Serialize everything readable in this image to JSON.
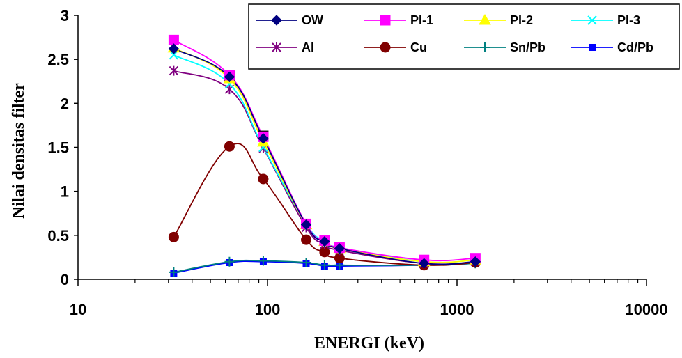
{
  "chart_data": {
    "type": "line",
    "xlabel": "ENERGI (keV)",
    "ylabel": "Nilai densitas filter",
    "xscale": "log",
    "xlim": [
      10,
      10000
    ],
    "ylim": [
      0,
      3
    ],
    "x_ticks": [
      "10",
      "100",
      "1000",
      "10000"
    ],
    "y_ticks": [
      "0",
      "0.5",
      "1",
      "1.5",
      "2",
      "2.5",
      "3"
    ],
    "grid": false,
    "legend_position": "top-right",
    "x": [
      32,
      63,
      95,
      160,
      200,
      240,
      670,
      1250
    ],
    "series": [
      {
        "name": "OW",
        "color": "#000080",
        "marker": "diamond",
        "values": [
          2.62,
          2.3,
          1.6,
          0.62,
          0.43,
          0.35,
          0.18,
          0.2
        ]
      },
      {
        "name": "PI-1",
        "color": "#ff00ff",
        "marker": "square",
        "values": [
          2.72,
          2.32,
          1.62,
          0.63,
          0.44,
          0.36,
          0.22,
          0.24
        ]
      },
      {
        "name": "PI-2",
        "color": "#ffff00",
        "marker": "triangle",
        "values": [
          2.63,
          2.28,
          1.56,
          0.62,
          0.43,
          0.35,
          0.2,
          0.22
        ]
      },
      {
        "name": "PI-3",
        "color": "#00ffff",
        "marker": "x",
        "values": [
          2.55,
          2.22,
          1.5,
          0.63,
          0.44,
          0.36,
          0.2,
          0.22
        ]
      },
      {
        "name": "Al",
        "color": "#800080",
        "marker": "star",
        "values": [
          2.37,
          2.16,
          1.49,
          0.59,
          0.4,
          0.33,
          0.18,
          0.2
        ]
      },
      {
        "name": "Cu",
        "color": "#800000",
        "marker": "circle",
        "values": [
          0.48,
          1.51,
          1.14,
          0.45,
          0.31,
          0.24,
          0.16,
          0.19
        ]
      },
      {
        "name": "Sn/Pb",
        "color": "#008080",
        "marker": "plus",
        "values": [
          0.08,
          0.2,
          0.21,
          0.19,
          0.16,
          0.16,
          0.16,
          0.18
        ]
      },
      {
        "name": "Cd/Pb",
        "color": "#0000ff",
        "marker": "smallsquare",
        "values": [
          0.07,
          0.19,
          0.2,
          0.18,
          0.15,
          0.15,
          0.16,
          0.18
        ]
      },
      {
        "name": "",
        "color": "#000000",
        "marker": "square",
        "values": [
          null,
          2.31,
          1.63,
          null,
          null,
          null,
          null,
          null
        ]
      }
    ]
  }
}
